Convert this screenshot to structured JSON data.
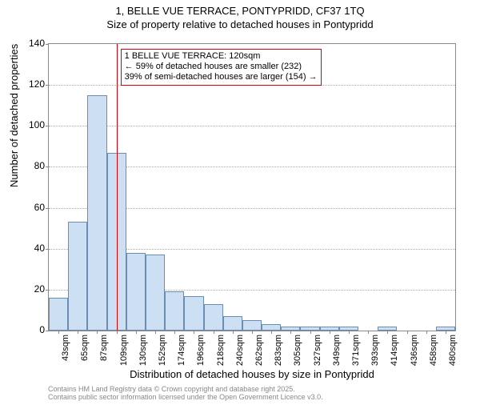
{
  "title_main": "1, BELLE VUE TERRACE, PONTYPRIDD, CF37 1TQ",
  "title_sub": "Size of property relative to detached houses in Pontypridd",
  "ylabel": "Number of detached properties",
  "xlabel": "Distribution of detached houses by size in Pontypridd",
  "footer_line1": "Contains HM Land Registry data © Crown copyright and database right 2025.",
  "footer_line2": "Contains public sector information licensed under the Open Government Licence v3.0.",
  "chart": {
    "type": "histogram",
    "ylim": [
      0,
      140
    ],
    "ytick_step": 20,
    "yticks": [
      0,
      20,
      40,
      60,
      80,
      100,
      120,
      140
    ],
    "xlim_index": [
      0,
      21
    ],
    "categories": [
      "43sqm",
      "65sqm",
      "87sqm",
      "109sqm",
      "130sqm",
      "152sqm",
      "174sqm",
      "196sqm",
      "218sqm",
      "240sqm",
      "262sqm",
      "283sqm",
      "305sqm",
      "327sqm",
      "349sqm",
      "371sqm",
      "393sqm",
      "414sqm",
      "436sqm",
      "458sqm",
      "480sqm"
    ],
    "values": [
      16,
      53,
      115,
      87,
      38,
      37,
      19,
      17,
      13,
      7,
      5,
      3,
      2,
      2,
      2,
      2,
      0,
      2,
      0,
      0,
      2
    ],
    "bar_fill": "#cddff2",
    "bar_stroke": "#6b8cb5",
    "background_color": "#ffffff",
    "grid_color": "#aaaaaa",
    "axis_color": "#888888",
    "refline_color": "#cc0000",
    "refline_value_sqm": 120,
    "refline_category_index": 3.5,
    "annotation": {
      "line1": "1 BELLE VUE TERRACE: 120sqm",
      "line2": "← 59% of detached houses are smaller (232)",
      "line3": "39% of semi-detached houses are larger (154) →",
      "border_color": "#cc0000",
      "fontsize": 11
    },
    "title_fontsize": 13,
    "label_fontsize": 13,
    "tick_fontsize": 12
  }
}
